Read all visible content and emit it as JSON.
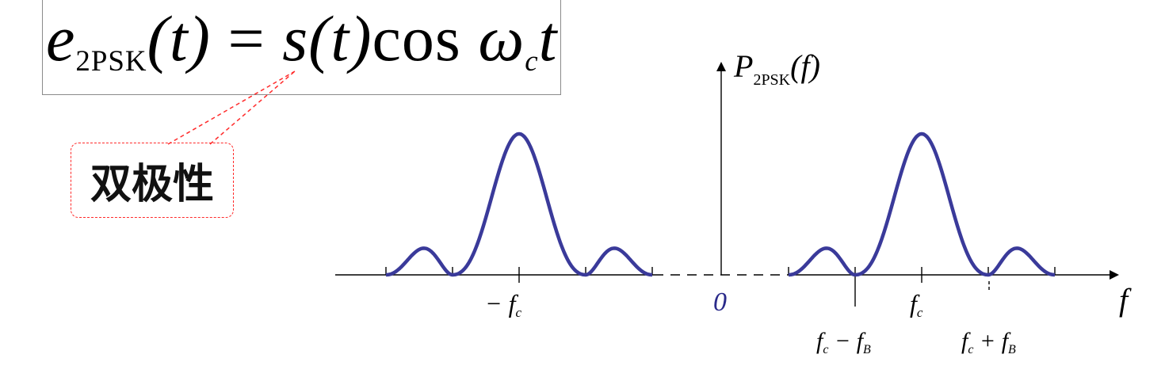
{
  "formula": {
    "lhs_symbol": "e",
    "lhs_subscript": "2PSK",
    "lhs_arg": "(t)",
    "equals": "=",
    "rhs_signal": "s",
    "rhs_arg": "(t)",
    "rhs_cos": "cos",
    "rhs_omega": "ω",
    "rhs_omega_sub": "c",
    "rhs_t": "t"
  },
  "callout": {
    "label": "双极性"
  },
  "spectrum": {
    "y_axis_symbol": "P",
    "y_axis_subscript": "2PSK",
    "y_axis_arg": "(f)",
    "x_axis_label": "f",
    "origin_label": "0",
    "neg_carrier_label": "− f",
    "neg_carrier_sub": "c",
    "pos_carrier_label": "f",
    "pos_carrier_sub": "c",
    "lower_edge_label_f": "f",
    "lower_edge_label_c": "c",
    "lower_edge_label_op": " − f",
    "lower_edge_label_B": "B",
    "upper_edge_label_f": "f",
    "upper_edge_label_c": "c",
    "upper_edge_label_op": " + f",
    "upper_edge_label_B": "B",
    "curve_color": "#3a3a9a",
    "origin_color": "#2a2a8a",
    "callout_border_color": "#ff2a2a"
  }
}
